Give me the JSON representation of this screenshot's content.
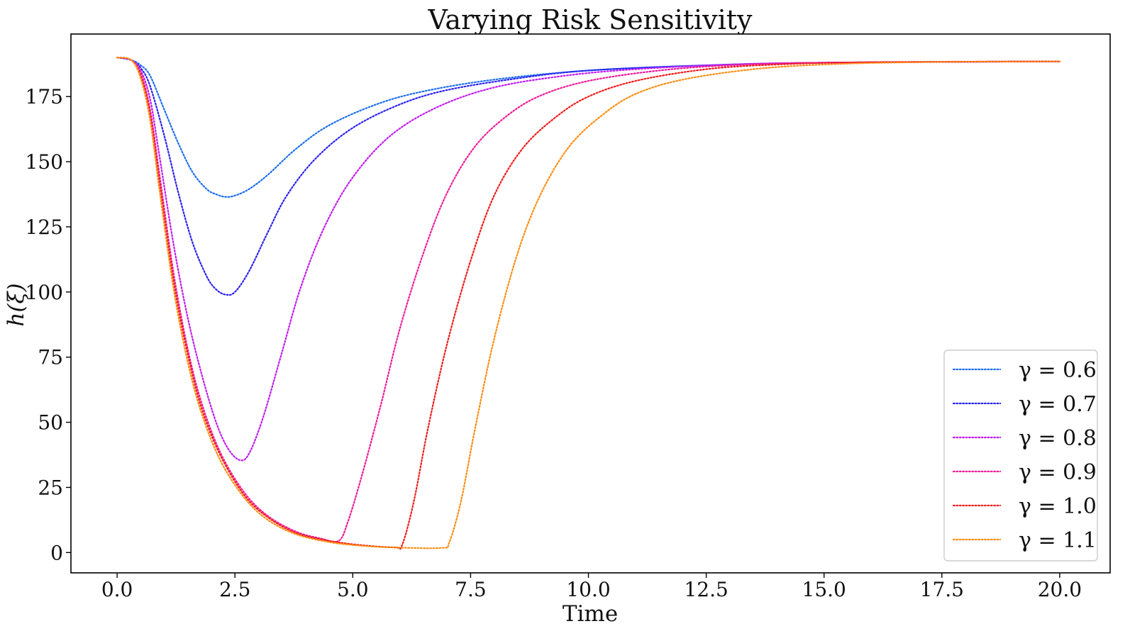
{
  "chart_data": {
    "type": "line",
    "title": "Varying Risk Sensitivity",
    "xlabel": "Time",
    "ylabel": "h(ξ)",
    "xlim": [
      -0.98,
      21.07
    ],
    "ylim": [
      -7.8,
      199
    ],
    "xticks": [
      0,
      2.5,
      5,
      7.5,
      10,
      12.5,
      15,
      17.5,
      20
    ],
    "xtick_labels": [
      "0.0",
      "2.5",
      "5.0",
      "7.5",
      "10.0",
      "12.5",
      "15.0",
      "17.5",
      "20.0"
    ],
    "yticks": [
      0,
      25,
      50,
      75,
      100,
      125,
      150,
      175
    ],
    "ytick_labels": [
      "0",
      "25",
      "50",
      "75",
      "100",
      "125",
      "150",
      "175"
    ],
    "grid": false,
    "legend_position": "lower-right",
    "line_style": "dotted",
    "series": [
      {
        "name": "γ = 0.6",
        "color": "#1e6ff0",
        "points": [
          [
            0,
            190
          ],
          [
            0.3,
            189
          ],
          [
            0.5,
            187
          ],
          [
            0.7,
            183
          ],
          [
            1.0,
            170
          ],
          [
            1.3,
            157
          ],
          [
            1.6,
            146
          ],
          [
            1.9,
            139.5
          ],
          [
            2.1,
            137.5
          ],
          [
            2.3,
            136.5
          ],
          [
            2.5,
            137
          ],
          [
            2.8,
            139.5
          ],
          [
            3.2,
            145
          ],
          [
            3.8,
            155
          ],
          [
            4.5,
            164
          ],
          [
            5.5,
            172
          ],
          [
            6.5,
            177
          ],
          [
            8,
            181.5
          ],
          [
            10,
            185
          ],
          [
            12.5,
            187
          ],
          [
            15,
            188
          ],
          [
            20,
            188.5
          ]
        ]
      },
      {
        "name": "γ = 0.7",
        "color": "#2b22f0",
        "points": [
          [
            0,
            190
          ],
          [
            0.3,
            189
          ],
          [
            0.5,
            186
          ],
          [
            0.7,
            179
          ],
          [
            1.0,
            160
          ],
          [
            1.3,
            138
          ],
          [
            1.6,
            119
          ],
          [
            1.9,
            106
          ],
          [
            2.1,
            101
          ],
          [
            2.3,
            99
          ],
          [
            2.5,
            100
          ],
          [
            2.8,
            108
          ],
          [
            3.2,
            123
          ],
          [
            3.6,
            137
          ],
          [
            4.2,
            151
          ],
          [
            5,
            163
          ],
          [
            6,
            172
          ],
          [
            7,
            177.5
          ],
          [
            8.5,
            182
          ],
          [
            10,
            185
          ],
          [
            12.5,
            187
          ],
          [
            15,
            188
          ],
          [
            20,
            188.5
          ]
        ]
      },
      {
        "name": "γ = 0.8",
        "color": "#c21cf0",
        "points": [
          [
            0,
            190
          ],
          [
            0.3,
            189
          ],
          [
            0.5,
            185
          ],
          [
            0.7,
            174
          ],
          [
            0.9,
            152
          ],
          [
            1.2,
            118
          ],
          [
            1.5,
            90
          ],
          [
            1.8,
            68
          ],
          [
            2.1,
            50
          ],
          [
            2.35,
            40
          ],
          [
            2.6,
            35.5
          ],
          [
            2.8,
            38
          ],
          [
            3.1,
            52
          ],
          [
            3.5,
            77
          ],
          [
            3.9,
            102
          ],
          [
            4.4,
            125
          ],
          [
            5,
            144
          ],
          [
            5.8,
            160
          ],
          [
            6.8,
            171
          ],
          [
            8,
            178.5
          ],
          [
            9.5,
            183
          ],
          [
            11,
            185.5
          ],
          [
            13,
            187.3
          ],
          [
            15,
            188
          ],
          [
            20,
            188.5
          ]
        ]
      },
      {
        "name": "γ = 0.9",
        "color": "#f01c9a",
        "points": [
          [
            0,
            190
          ],
          [
            0.3,
            189
          ],
          [
            0.5,
            184
          ],
          [
            0.7,
            170
          ],
          [
            0.9,
            145
          ],
          [
            1.2,
            107
          ],
          [
            1.5,
            78
          ],
          [
            1.8,
            57
          ],
          [
            2.2,
            38
          ],
          [
            2.7,
            23
          ],
          [
            3.2,
            14
          ],
          [
            3.8,
            8
          ],
          [
            4.3,
            5.5
          ],
          [
            4.7,
            4.5
          ],
          [
            4.9,
            12
          ],
          [
            5.2,
            30
          ],
          [
            5.6,
            57
          ],
          [
            6.0,
            86
          ],
          [
            6.5,
            115
          ],
          [
            7.0,
            138
          ],
          [
            7.6,
            156
          ],
          [
            8.3,
            168
          ],
          [
            9,
            175.5
          ],
          [
            10,
            181
          ],
          [
            11.5,
            185
          ],
          [
            13,
            187
          ],
          [
            15,
            188
          ],
          [
            20,
            188.5
          ]
        ]
      },
      {
        "name": "γ = 1.0",
        "color": "#f01c1c",
        "points": [
          [
            0,
            190
          ],
          [
            0.3,
            189
          ],
          [
            0.5,
            183
          ],
          [
            0.7,
            168
          ],
          [
            0.9,
            142
          ],
          [
            1.2,
            104
          ],
          [
            1.5,
            76
          ],
          [
            1.8,
            55
          ],
          [
            2.2,
            37
          ],
          [
            2.7,
            22
          ],
          [
            3.2,
            13.5
          ],
          [
            3.8,
            7.5
          ],
          [
            4.5,
            4.5
          ],
          [
            5.2,
            2.8
          ],
          [
            5.9,
            2
          ],
          [
            6.05,
            3
          ],
          [
            6.3,
            20
          ],
          [
            6.6,
            48
          ],
          [
            7,
            80
          ],
          [
            7.5,
            112
          ],
          [
            8,
            137
          ],
          [
            8.6,
            155
          ],
          [
            9.3,
            167
          ],
          [
            10,
            175
          ],
          [
            11,
            181
          ],
          [
            12.5,
            185.5
          ],
          [
            14,
            187.3
          ],
          [
            16,
            188.2
          ],
          [
            20,
            188.5
          ]
        ]
      },
      {
        "name": "γ = 1.1",
        "color": "#ff8c10",
        "points": [
          [
            0,
            190
          ],
          [
            0.3,
            189
          ],
          [
            0.5,
            182
          ],
          [
            0.7,
            166
          ],
          [
            0.9,
            139
          ],
          [
            1.2,
            101
          ],
          [
            1.5,
            73
          ],
          [
            1.8,
            53
          ],
          [
            2.2,
            35
          ],
          [
            2.7,
            21
          ],
          [
            3.2,
            12.5
          ],
          [
            3.8,
            7
          ],
          [
            4.5,
            4
          ],
          [
            5.2,
            2.6
          ],
          [
            6,
            1.9
          ],
          [
            6.9,
            1.8
          ],
          [
            7.05,
            4
          ],
          [
            7.3,
            20
          ],
          [
            7.6,
            48
          ],
          [
            8,
            82
          ],
          [
            8.5,
            115
          ],
          [
            9,
            138
          ],
          [
            9.6,
            156
          ],
          [
            10.3,
            168
          ],
          [
            11,
            176
          ],
          [
            12,
            181.5
          ],
          [
            13.5,
            185.5
          ],
          [
            15,
            187.3
          ],
          [
            17,
            188.2
          ],
          [
            20,
            188.5
          ]
        ]
      }
    ]
  }
}
